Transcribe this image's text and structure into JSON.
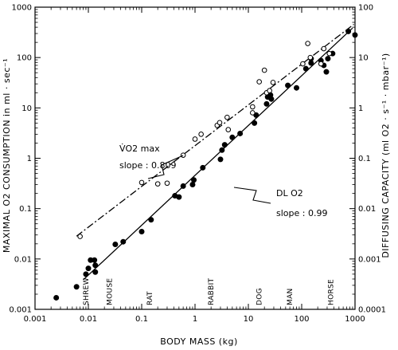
{
  "chart_data": {
    "type": "scatter",
    "xlabel": "BODY MASS (kg)",
    "ylabel": "MAXIMAL O2 CONSUMPTION in ml · sec⁻¹",
    "y2label": "DIFFUSING CAPACITY (ml O2 · s⁻¹ · mbar⁻¹)",
    "xscale": "log",
    "yscale": "log",
    "xlim": [
      0.001,
      1000
    ],
    "ylim": [
      0.001,
      1000
    ],
    "y2lim": [
      0.0001,
      100
    ],
    "x_ticks": [
      "0.001",
      "0.01",
      "0.1",
      "1",
      "10",
      "100",
      "1000"
    ],
    "y_ticks": [
      "0.001",
      "0.01",
      "0.1",
      "1",
      "10",
      "100",
      "1000"
    ],
    "y2_ticks": [
      "0.0001",
      "0.001",
      "0.01",
      "0.1",
      "1",
      "10",
      "100"
    ],
    "grid": false,
    "species_labels": [
      {
        "label": "SHREW",
        "x": 0.009
      },
      {
        "label": "MOUSE",
        "x": 0.025
      },
      {
        "label": "RAT",
        "x": 0.14
      },
      {
        "label": "RABBIT",
        "x": 2.0
      },
      {
        "label": "DOG",
        "x": 16
      },
      {
        "label": "MAN",
        "x": 60
      },
      {
        "label": "HORSE",
        "x": 350
      }
    ],
    "series": [
      {
        "name": "DL O2",
        "marker": "filled-circle",
        "fit": {
          "type": "power",
          "slope": 0.99,
          "x_range": [
            0.008,
            900
          ],
          "style": "solid"
        },
        "points": [
          [
            0.0025,
            0.0017
          ],
          [
            0.006,
            0.0028
          ],
          [
            0.009,
            0.005
          ],
          [
            0.01,
            0.0065
          ],
          [
            0.011,
            0.0095
          ],
          [
            0.0135,
            0.0075
          ],
          [
            0.013,
            0.0095
          ],
          [
            0.0135,
            0.0055
          ],
          [
            0.032,
            0.0195
          ],
          [
            0.045,
            0.022
          ],
          [
            0.1,
            0.035
          ],
          [
            0.15,
            0.06
          ],
          [
            0.42,
            0.18
          ],
          [
            0.5,
            0.17
          ],
          [
            0.6,
            0.28
          ],
          [
            0.9,
            0.3
          ],
          [
            0.95,
            0.37
          ],
          [
            1.4,
            0.65
          ],
          [
            3,
            0.95
          ],
          [
            3.2,
            1.45
          ],
          [
            3.6,
            1.85
          ],
          [
            5,
            2.6
          ],
          [
            7,
            3.1
          ],
          [
            13,
            5
          ],
          [
            14,
            7.2
          ],
          [
            22,
            12
          ],
          [
            27,
            15
          ],
          [
            23,
            16.5
          ],
          [
            26,
            18
          ],
          [
            55,
            28
          ],
          [
            80,
            25
          ],
          [
            120,
            60
          ],
          [
            150,
            78
          ],
          [
            150,
            95
          ],
          [
            230,
            87
          ],
          [
            260,
            70
          ],
          [
            310,
            95
          ],
          [
            290,
            52
          ],
          [
            380,
            120
          ],
          [
            750,
            330
          ],
          [
            1000,
            280
          ]
        ]
      },
      {
        "name": "V̇O2 max",
        "marker": "open-circle",
        "fit": {
          "type": "power",
          "slope": 0.809,
          "x_range": [
            0.006,
            950
          ],
          "style": "dashed"
        },
        "points": [
          [
            0.007,
            0.028
          ],
          [
            0.1,
            0.33
          ],
          [
            0.2,
            0.31
          ],
          [
            0.3,
            0.32
          ],
          [
            0.6,
            1.15
          ],
          [
            1,
            2.4
          ],
          [
            1.3,
            3
          ],
          [
            2.6,
            4.5
          ],
          [
            2.9,
            5.1
          ],
          [
            4,
            6.5
          ],
          [
            4.2,
            3.7
          ],
          [
            12,
            8
          ],
          [
            12,
            10.5
          ],
          [
            22,
            20
          ],
          [
            25,
            22
          ],
          [
            16,
            33
          ],
          [
            29,
            32
          ],
          [
            20,
            56
          ],
          [
            105,
            75
          ],
          [
            130,
            190
          ],
          [
            145,
            100
          ],
          [
            230,
            75
          ],
          [
            260,
            150
          ],
          [
            330,
            120
          ]
        ]
      }
    ],
    "annotations": [
      {
        "text": "V̇O2 max",
        "series": "V̇O2 max"
      },
      {
        "text": "slope : 0.809",
        "series": "V̇O2 max"
      },
      {
        "text": "DL O2",
        "series": "DL O2"
      },
      {
        "text": "slope : 0.99",
        "series": "DL O2"
      }
    ]
  }
}
